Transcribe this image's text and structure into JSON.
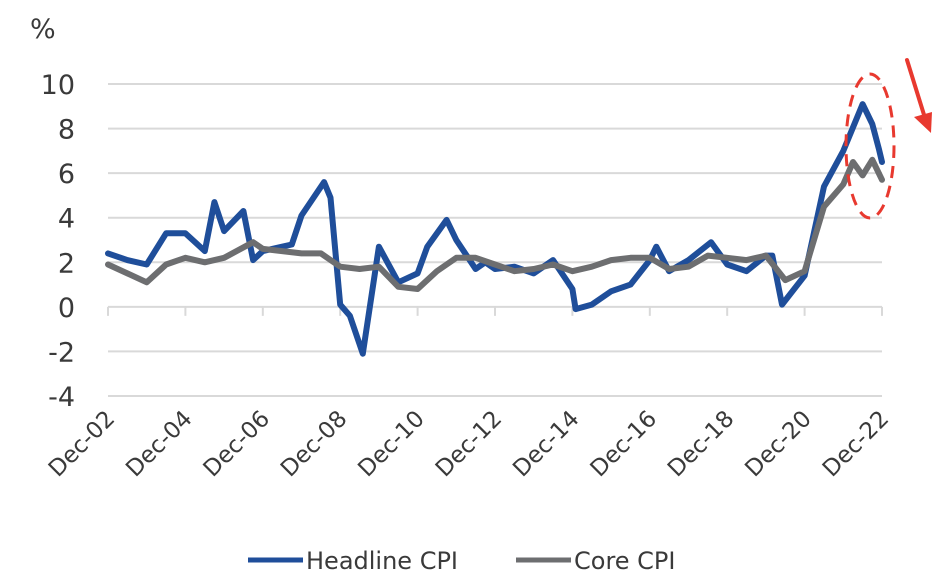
{
  "chart_data": {
    "type": "line",
    "title": "",
    "ylabel": "%",
    "xlabel": "",
    "ylim": [
      -4,
      10
    ],
    "yticks": [
      10,
      8,
      6,
      4,
      2,
      0,
      -2,
      -4
    ],
    "xticks": [
      "Dec-02",
      "Dec-04",
      "Dec-06",
      "Dec-08",
      "Dec-10",
      "Dec-12",
      "Dec-14",
      "Dec-16",
      "Dec-18",
      "Dec-20",
      "Dec-22"
    ],
    "grid": true,
    "legend": "bottom",
    "x_start": "Dec-02",
    "x_end": "Dec-22",
    "series": [
      {
        "name": "Headline CPI",
        "color": "#1f4e9a",
        "points": [
          [
            "Dec-02",
            2.4
          ],
          [
            "Jun-03",
            2.1
          ],
          [
            "Dec-03",
            1.9
          ],
          [
            "Jun-04",
            3.3
          ],
          [
            "Dec-04",
            3.3
          ],
          [
            "Jun-05",
            2.5
          ],
          [
            "Sep-05",
            4.7
          ],
          [
            "Dec-05",
            3.4
          ],
          [
            "Jun-06",
            4.3
          ],
          [
            "Sep-06",
            2.1
          ],
          [
            "Dec-06",
            2.5
          ],
          [
            "Jun-07",
            2.7
          ],
          [
            "Sep-07",
            2.8
          ],
          [
            "Dec-07",
            4.1
          ],
          [
            "Jul-08",
            5.6
          ],
          [
            "Sep-08",
            4.9
          ],
          [
            "Dec-08",
            0.1
          ],
          [
            "Mar-09",
            -0.4
          ],
          [
            "Jul-09",
            -2.1
          ],
          [
            "Dec-09",
            2.7
          ],
          [
            "Jun-10",
            1.1
          ],
          [
            "Dec-10",
            1.5
          ],
          [
            "Mar-11",
            2.7
          ],
          [
            "Sep-11",
            3.9
          ],
          [
            "Dec-11",
            3.0
          ],
          [
            "Jun-12",
            1.7
          ],
          [
            "Sep-12",
            2.0
          ],
          [
            "Dec-12",
            1.7
          ],
          [
            "Jun-13",
            1.8
          ],
          [
            "Dec-13",
            1.5
          ],
          [
            "Jun-14",
            2.1
          ],
          [
            "Dec-14",
            0.8
          ],
          [
            "Jan-15",
            -0.1
          ],
          [
            "Jun-15",
            0.1
          ],
          [
            "Dec-15",
            0.7
          ],
          [
            "Jun-16",
            1.0
          ],
          [
            "Dec-16",
            2.1
          ],
          [
            "Feb-17",
            2.7
          ],
          [
            "Jun-17",
            1.6
          ],
          [
            "Dec-17",
            2.1
          ],
          [
            "Jul-18",
            2.9
          ],
          [
            "Dec-18",
            1.9
          ],
          [
            "Jun-19",
            1.6
          ],
          [
            "Dec-19",
            2.3
          ],
          [
            "Feb-20",
            2.3
          ],
          [
            "May-20",
            0.1
          ],
          [
            "Dec-20",
            1.4
          ],
          [
            "Jun-21",
            5.4
          ],
          [
            "Dec-21",
            7.0
          ],
          [
            "Jun-22",
            9.1
          ],
          [
            "Sep-22",
            8.2
          ],
          [
            "Nov-22",
            7.1
          ],
          [
            "Dec-22",
            6.5
          ]
        ]
      },
      {
        "name": "Core CPI",
        "color": "#6d6e70",
        "points": [
          [
            "Dec-02",
            1.9
          ],
          [
            "Dec-03",
            1.1
          ],
          [
            "Jun-04",
            1.9
          ],
          [
            "Dec-04",
            2.2
          ],
          [
            "Jun-05",
            2.0
          ],
          [
            "Dec-05",
            2.2
          ],
          [
            "Sep-06",
            2.9
          ],
          [
            "Dec-06",
            2.6
          ],
          [
            "Dec-07",
            2.4
          ],
          [
            "Jun-08",
            2.4
          ],
          [
            "Dec-08",
            1.8
          ],
          [
            "Jun-09",
            1.7
          ],
          [
            "Dec-09",
            1.8
          ],
          [
            "Jun-10",
            0.9
          ],
          [
            "Dec-10",
            0.8
          ],
          [
            "Jun-11",
            1.6
          ],
          [
            "Dec-11",
            2.2
          ],
          [
            "Jun-12",
            2.2
          ],
          [
            "Dec-12",
            1.9
          ],
          [
            "Jun-13",
            1.6
          ],
          [
            "Dec-13",
            1.7
          ],
          [
            "Jun-14",
            1.9
          ],
          [
            "Dec-14",
            1.6
          ],
          [
            "Jun-15",
            1.8
          ],
          [
            "Dec-15",
            2.1
          ],
          [
            "Jun-16",
            2.2
          ],
          [
            "Dec-16",
            2.2
          ],
          [
            "Jun-17",
            1.7
          ],
          [
            "Dec-17",
            1.8
          ],
          [
            "Jun-18",
            2.3
          ],
          [
            "Dec-18",
            2.2
          ],
          [
            "Jun-19",
            2.1
          ],
          [
            "Dec-19",
            2.3
          ],
          [
            "Jun-20",
            1.2
          ],
          [
            "Dec-20",
            1.6
          ],
          [
            "Jun-21",
            4.5
          ],
          [
            "Dec-21",
            5.5
          ],
          [
            "Mar-22",
            6.5
          ],
          [
            "Jun-22",
            5.9
          ],
          [
            "Sep-22",
            6.6
          ],
          [
            "Dec-22",
            5.7
          ]
        ]
      }
    ],
    "annotations": [
      {
        "kind": "dashed-ellipse",
        "color": "#e8392f"
      },
      {
        "kind": "arrow-down",
        "color": "#e8392f"
      }
    ]
  }
}
